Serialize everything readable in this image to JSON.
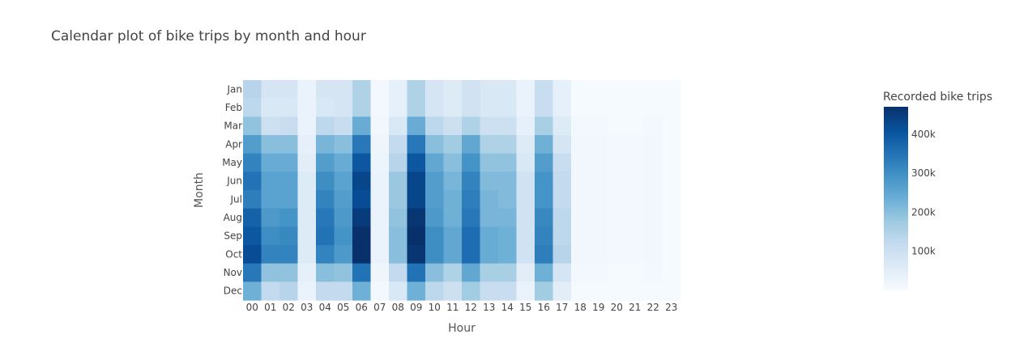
{
  "chart_data": {
    "type": "heatmap",
    "title": "Calendar plot of bike trips by month and hour",
    "xlabel": "Hour",
    "ylabel": "Month",
    "x": [
      "00",
      "01",
      "02",
      "03",
      "04",
      "05",
      "06",
      "07",
      "08",
      "09",
      "10",
      "11",
      "12",
      "13",
      "14",
      "15",
      "16",
      "17",
      "18",
      "19",
      "20",
      "21",
      "22",
      "23"
    ],
    "y": [
      "Jan",
      "Feb",
      "Mar",
      "Apr",
      "May",
      "Jun",
      "Jul",
      "Aug",
      "Sep",
      "Oct",
      "Nov",
      "Dec"
    ],
    "z": [
      [
        140,
        80,
        80,
        30,
        80,
        80,
        150,
        10,
        40,
        150,
        80,
        60,
        90,
        70,
        70,
        30,
        110,
        40,
        5,
        5,
        5,
        5,
        5,
        5
      ],
      [
        130,
        70,
        70,
        30,
        70,
        80,
        150,
        10,
        40,
        150,
        80,
        60,
        90,
        70,
        70,
        30,
        110,
        40,
        5,
        5,
        5,
        5,
        5,
        5
      ],
      [
        190,
        100,
        110,
        30,
        130,
        110,
        240,
        15,
        70,
        240,
        130,
        100,
        150,
        100,
        100,
        40,
        160,
        60,
        10,
        10,
        5,
        5,
        10,
        5
      ],
      [
        270,
        200,
        200,
        40,
        220,
        200,
        340,
        20,
        120,
        340,
        200,
        170,
        250,
        150,
        150,
        60,
        230,
        80,
        15,
        15,
        10,
        10,
        15,
        5
      ],
      [
        320,
        240,
        240,
        50,
        270,
        240,
        400,
        25,
        140,
        400,
        250,
        200,
        290,
        190,
        190,
        70,
        270,
        110,
        15,
        15,
        10,
        10,
        15,
        5
      ],
      [
        350,
        260,
        260,
        60,
        300,
        260,
        430,
        30,
        180,
        430,
        270,
        220,
        320,
        210,
        210,
        90,
        290,
        120,
        15,
        15,
        10,
        10,
        15,
        5
      ],
      [
        330,
        260,
        260,
        60,
        320,
        270,
        420,
        30,
        180,
        430,
        270,
        230,
        330,
        220,
        210,
        90,
        290,
        120,
        15,
        15,
        10,
        10,
        15,
        5
      ],
      [
        380,
        280,
        290,
        60,
        340,
        280,
        450,
        30,
        190,
        460,
        280,
        230,
        340,
        220,
        220,
        90,
        310,
        130,
        15,
        15,
        10,
        10,
        15,
        5
      ],
      [
        400,
        300,
        310,
        60,
        350,
        290,
        470,
        30,
        200,
        470,
        300,
        250,
        360,
        240,
        230,
        90,
        320,
        130,
        15,
        15,
        10,
        10,
        15,
        5
      ],
      [
        420,
        320,
        320,
        60,
        320,
        280,
        470,
        30,
        200,
        460,
        300,
        250,
        360,
        240,
        230,
        90,
        330,
        140,
        15,
        15,
        10,
        10,
        15,
        5
      ],
      [
        340,
        190,
        190,
        40,
        200,
        190,
        350,
        20,
        120,
        350,
        200,
        150,
        250,
        160,
        160,
        50,
        230,
        80,
        10,
        10,
        5,
        5,
        10,
        5
      ],
      [
        230,
        120,
        140,
        30,
        120,
        120,
        230,
        10,
        70,
        230,
        130,
        100,
        170,
        110,
        110,
        30,
        170,
        50,
        5,
        5,
        5,
        5,
        5,
        5
      ]
    ],
    "zmin": 0,
    "zmax": 470,
    "colorscale": [
      "#f7fbff",
      "#deebf7",
      "#c6dbef",
      "#9ecae1",
      "#6baed6",
      "#4292c6",
      "#2171b5",
      "#08519c",
      "#08306b"
    ],
    "colorbar": {
      "title": "Recorded bike trips",
      "tickvals": [
        100,
        200,
        300,
        400
      ],
      "ticktext": [
        "100k",
        "200k",
        "300k",
        "400k"
      ]
    },
    "value_unit": "thousands of trips",
    "grid": false,
    "legend": "colorbar-right"
  }
}
